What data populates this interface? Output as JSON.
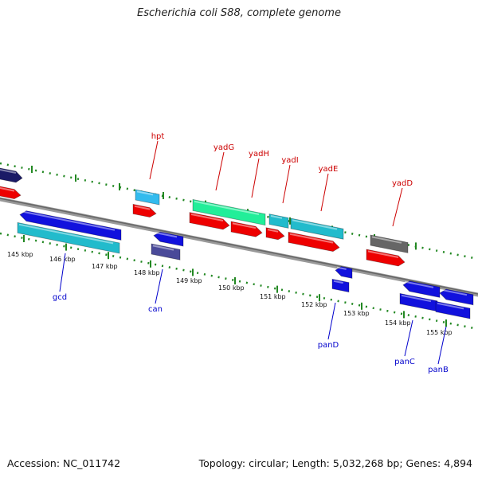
{
  "title": "Escherichia coli S88, complete genome",
  "footer": {
    "accession": "Accession: NC_011742",
    "summary": "Topology: circular; Length: 5,032,268 bp; Genes: 4,894"
  },
  "colors": {
    "axis": "#888888",
    "tick": "#228822",
    "label_top": "#cc0000",
    "label_bottom": "#0000cc",
    "red": "#ee0000",
    "blue": "#1111dd",
    "cyan": "#22bbcc",
    "sky": "#33bbee",
    "green": "#22ee99",
    "navy": "#1a1a66",
    "slate": "#4a4a99",
    "gray": "#666666"
  },
  "kbp_ticks": [
    "145 kbp",
    "146 kbp",
    "147 kbp",
    "148 kbp",
    "149 kbp",
    "150 kbp",
    "151 kbp",
    "152 kbp",
    "153 kbp",
    "154 kbp",
    "155 kbp"
  ],
  "gene_labels_top": [
    "hpt",
    "yadG",
    "yadH",
    "yadI",
    "yadE",
    "yadD"
  ],
  "gene_labels_bottom": [
    "gcd",
    "can",
    "panD",
    "panC",
    "panB"
  ]
}
